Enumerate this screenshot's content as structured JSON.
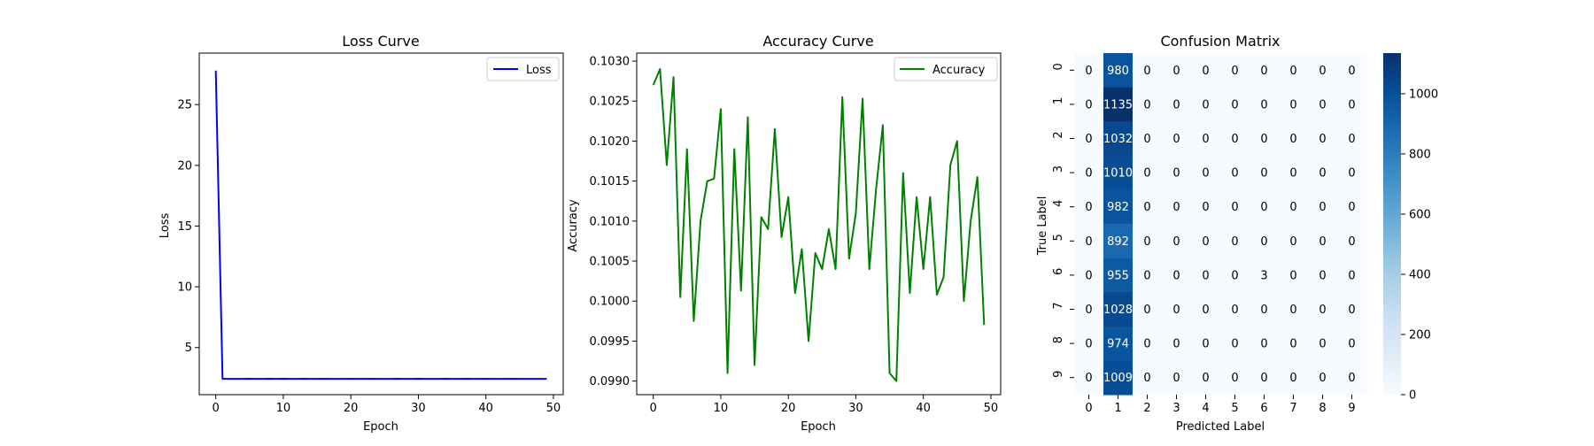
{
  "chart_data": [
    {
      "type": "line",
      "title": "Loss Curve",
      "xlabel": "Epoch",
      "ylabel": "Loss",
      "xlim": [
        -2.45,
        51.45
      ],
      "ylim": [
        1.12,
        29.24
      ],
      "xticks": [
        0,
        10,
        20,
        30,
        40,
        50
      ],
      "yticks": [
        5,
        10,
        15,
        20,
        25
      ],
      "legend": "top-right",
      "grid": false,
      "series": [
        {
          "name": "Loss",
          "color": "#0000ff",
          "x": [
            0,
            1,
            2,
            3,
            4,
            5,
            6,
            7,
            8,
            9,
            10,
            11,
            12,
            13,
            14,
            15,
            16,
            17,
            18,
            19,
            20,
            21,
            22,
            23,
            24,
            25,
            26,
            27,
            28,
            29,
            30,
            31,
            32,
            33,
            34,
            35,
            36,
            37,
            38,
            39,
            40,
            41,
            42,
            43,
            44,
            45,
            46,
            47,
            48,
            49
          ],
          "values": [
            27.8,
            2.42,
            2.42,
            2.42,
            2.42,
            2.43,
            2.42,
            2.42,
            2.43,
            2.42,
            2.43,
            2.42,
            2.42,
            2.43,
            2.42,
            2.42,
            2.43,
            2.42,
            2.42,
            2.42,
            2.43,
            2.42,
            2.42,
            2.43,
            2.42,
            2.42,
            2.42,
            2.43,
            2.42,
            2.42,
            2.43,
            2.42,
            2.42,
            2.42,
            2.43,
            2.42,
            2.42,
            2.43,
            2.42,
            2.42,
            2.43,
            2.42,
            2.42,
            2.42,
            2.43,
            2.42,
            2.42,
            2.42,
            2.42,
            2.42
          ]
        }
      ]
    },
    {
      "type": "line",
      "title": "Accuracy Curve",
      "xlabel": "Epoch",
      "ylabel": "Accuracy",
      "xlim": [
        -2.45,
        51.45
      ],
      "ylim": [
        0.09883,
        0.1031
      ],
      "xticks": [
        0,
        10,
        20,
        30,
        40,
        50
      ],
      "yticks": [
        0.099,
        0.0995,
        0.1,
        0.1005,
        0.101,
        0.1015,
        0.102,
        0.1025,
        0.103
      ],
      "legend": "top-right",
      "grid": false,
      "series": [
        {
          "name": "Accuracy",
          "color": "#008000",
          "x": [
            0,
            1,
            2,
            3,
            4,
            5,
            6,
            7,
            8,
            9,
            10,
            11,
            12,
            13,
            14,
            15,
            16,
            17,
            18,
            19,
            20,
            21,
            22,
            23,
            24,
            25,
            26,
            27,
            28,
            29,
            30,
            31,
            32,
            33,
            34,
            35,
            36,
            37,
            38,
            39,
            40,
            41,
            42,
            43,
            44,
            45,
            46,
            47,
            48,
            49
          ],
          "values": [
            0.1027,
            0.1029,
            0.1017,
            0.1028,
            0.10005,
            0.1019,
            0.09975,
            0.101,
            0.1015,
            0.10153,
            0.1024,
            0.0991,
            0.1019,
            0.10013,
            0.1023,
            0.0992,
            0.10105,
            0.1009,
            0.10215,
            0.1008,
            0.1013,
            0.1001,
            0.10065,
            0.0995,
            0.1006,
            0.1004,
            0.1009,
            0.1004,
            0.10255,
            0.10053,
            0.1011,
            0.10253,
            0.1004,
            0.1014,
            0.1022,
            0.0991,
            0.099,
            0.1016,
            0.1001,
            0.1013,
            0.1004,
            0.1013,
            0.10008,
            0.1003,
            0.1017,
            0.102,
            0.1,
            0.101,
            0.10155,
            0.0997
          ]
        }
      ]
    },
    {
      "type": "heatmap",
      "title": "Confusion Matrix",
      "xlabel": "Predicted Label",
      "ylabel": "True Label",
      "x_categories": [
        "0",
        "1",
        "2",
        "3",
        "4",
        "5",
        "6",
        "7",
        "8",
        "9"
      ],
      "y_categories": [
        "0",
        "1",
        "2",
        "3",
        "4",
        "5",
        "6",
        "7",
        "8",
        "9"
      ],
      "colormap": "Blues",
      "colorbar": {
        "min": 0,
        "max": 1135,
        "ticks": [
          0,
          200,
          400,
          600,
          800,
          1000
        ]
      },
      "matrix": [
        [
          0,
          980,
          0,
          0,
          0,
          0,
          0,
          0,
          0,
          0
        ],
        [
          0,
          1135,
          0,
          0,
          0,
          0,
          0,
          0,
          0,
          0
        ],
        [
          0,
          1032,
          0,
          0,
          0,
          0,
          0,
          0,
          0,
          0
        ],
        [
          0,
          1010,
          0,
          0,
          0,
          0,
          0,
          0,
          0,
          0
        ],
        [
          0,
          982,
          0,
          0,
          0,
          0,
          0,
          0,
          0,
          0
        ],
        [
          0,
          892,
          0,
          0,
          0,
          0,
          0,
          0,
          0,
          0
        ],
        [
          0,
          955,
          0,
          0,
          0,
          0,
          3,
          0,
          0,
          0
        ],
        [
          0,
          1028,
          0,
          0,
          0,
          0,
          0,
          0,
          0,
          0
        ],
        [
          0,
          974,
          0,
          0,
          0,
          0,
          0,
          0,
          0,
          0
        ],
        [
          0,
          1009,
          0,
          0,
          0,
          0,
          0,
          0,
          0,
          0
        ]
      ]
    }
  ]
}
